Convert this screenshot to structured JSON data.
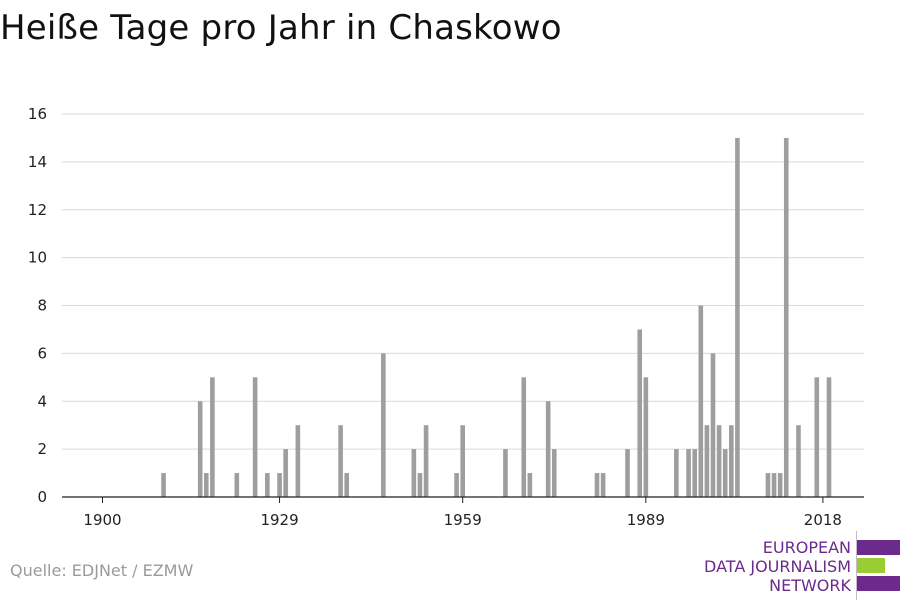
{
  "title": "Heiße Tage pro Jahr in Chaskowo",
  "source": "Quelle: EDJNet / EZMW",
  "logo": {
    "line1": "EUROPEAN",
    "line2": "DATA JOURNALISM",
    "line3": "NETWORK"
  },
  "colors": {
    "bar": "#9e9e9e",
    "grid": "#d9d9d9",
    "axis": "#222222",
    "logo_purple": "#6b2a8c",
    "logo_green": "#9acd32"
  },
  "chart_data": {
    "type": "bar",
    "title": "Heiße Tage pro Jahr in Chaskowo",
    "xlabel": "",
    "ylabel": "",
    "xlim": [
      1900,
      2018
    ],
    "ylim": [
      0,
      16
    ],
    "x_ticks": [
      1900,
      1929,
      1959,
      1989,
      2018
    ],
    "y_ticks": [
      0,
      2,
      4,
      6,
      8,
      10,
      12,
      14,
      16
    ],
    "grid": "horizontal",
    "x": [
      1910,
      1916,
      1917,
      1918,
      1922,
      1925,
      1927,
      1929,
      1930,
      1932,
      1939,
      1940,
      1946,
      1951,
      1952,
      1953,
      1958,
      1959,
      1966,
      1969,
      1970,
      1973,
      1974,
      1981,
      1982,
      1986,
      1988,
      1989,
      1994,
      1996,
      1997,
      1998,
      1999,
      2000,
      2001,
      2002,
      2003,
      2004,
      2009,
      2010,
      2011,
      2012,
      2014,
      2017,
      2019
    ],
    "values": [
      1,
      4,
      1,
      5,
      1,
      5,
      1,
      1,
      2,
      3,
      3,
      1,
      6,
      2,
      1,
      3,
      1,
      3,
      2,
      5,
      1,
      4,
      2,
      1,
      1,
      2,
      7,
      5,
      2,
      2,
      2,
      8,
      3,
      6,
      3,
      2,
      3,
      15,
      1,
      1,
      1,
      15,
      3,
      5,
      5
    ]
  }
}
